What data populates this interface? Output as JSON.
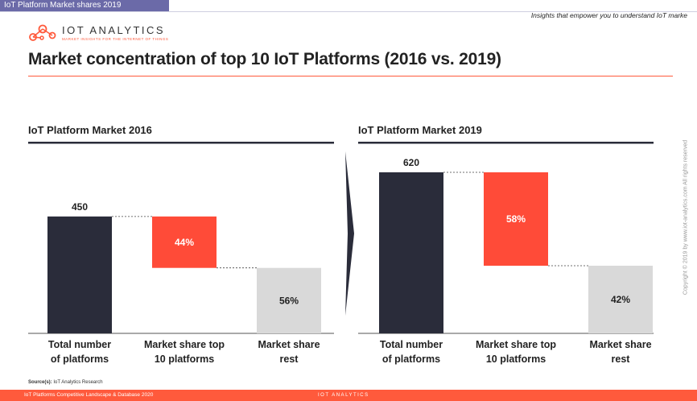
{
  "header": {
    "tab_label": "IoT Platform Market shares 2019",
    "tagline": "Insights that empower you to understand IoT marke",
    "logo_name": "IOT ANALYTICS",
    "logo_sub": "MARKET INSIGHTS FOR THE INTERNET OF THINGS",
    "brand_color": "#ff5a3c"
  },
  "title": "Market concentration of top 10 IoT Platforms (2016 vs. 2019)",
  "side_copyright": "Copyright © 2019 by www.iot-analytics.com All rights reserved",
  "source_label": "Source(s):",
  "source_text": "IoT Analytics Research",
  "footer": {
    "text": "IoT Platforms Competitive Landscape & Database 2020",
    "logo": "IOT ANALYTICS"
  },
  "chart_data": [
    {
      "type": "bar",
      "subtype": "waterfall",
      "title": "IoT Platform Market 2016",
      "categories": [
        "Total number\nof platforms",
        "Market share top\n10 platforms",
        "Market share\nrest"
      ],
      "total": 450,
      "labels": [
        "450",
        "44%",
        "56%"
      ],
      "shares": [
        1.0,
        0.44,
        0.56
      ],
      "colors": [
        "#2a2c3a",
        "#ff4b38",
        "#d9d9d9"
      ],
      "label_colors": [
        "#222",
        "#ffffff",
        "#222"
      ]
    },
    {
      "type": "bar",
      "subtype": "waterfall",
      "title": "IoT Platform Market 2019",
      "categories": [
        "Total number\nof platforms",
        "Market share top\n10 platforms",
        "Market share\nrest"
      ],
      "total": 620,
      "labels": [
        "620",
        "58%",
        "42%"
      ],
      "shares": [
        1.0,
        0.58,
        0.42
      ],
      "colors": [
        "#2a2c3a",
        "#ff4b38",
        "#d9d9d9"
      ],
      "label_colors": [
        "#222",
        "#ffffff",
        "#222"
      ]
    }
  ]
}
